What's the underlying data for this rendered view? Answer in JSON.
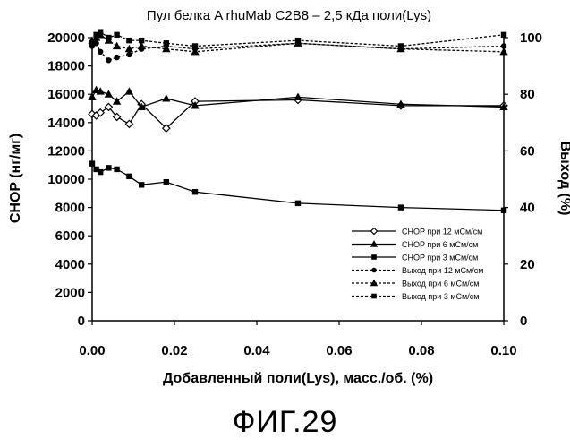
{
  "figure_label": "ФИГ.29",
  "chart_data": {
    "type": "line",
    "title": "Пул белка A rhuMab C2B8 – 2,5 кДа поли(Lys)",
    "xlabel": "Добавленный поли(Lys), масс./об. (%)",
    "ylabel": "CHOP (нг/мг)",
    "y2label": "Выход (%)",
    "xlim": [
      0,
      0.1
    ],
    "ylim": [
      0,
      20000
    ],
    "y2lim": [
      0,
      100
    ],
    "xticks": [
      "0.00",
      "0.02",
      "0.04",
      "0.06",
      "0.08",
      "0.10"
    ],
    "yticks": [
      "0",
      "2000",
      "4000",
      "6000",
      "8000",
      "10000",
      "12000",
      "14000",
      "16000",
      "18000",
      "20000"
    ],
    "y2ticks": [
      "0",
      "20",
      "40",
      "60",
      "80",
      "100"
    ],
    "grid": false,
    "legend_position": "center-right",
    "series": [
      {
        "name": "CHOP при 12 мСм/см",
        "axis": "left",
        "marker": "open-diamond",
        "dash": "solid",
        "x": [
          0,
          0.001,
          0.002,
          0.004,
          0.006,
          0.009,
          0.012,
          0.018,
          0.025,
          0.05,
          0.075,
          0.1
        ],
        "y": [
          14600,
          14500,
          14700,
          15100,
          14400,
          13900,
          15300,
          13600,
          15500,
          15600,
          15200,
          15200
        ]
      },
      {
        "name": "CHOP при 6 мСм/см",
        "axis": "left",
        "marker": "triangle",
        "dash": "solid",
        "x": [
          0,
          0.001,
          0.002,
          0.004,
          0.006,
          0.009,
          0.012,
          0.018,
          0.025,
          0.05,
          0.075,
          0.1
        ],
        "y": [
          15800,
          16300,
          16200,
          16000,
          15500,
          16200,
          15100,
          15700,
          15200,
          15800,
          15300,
          15100
        ]
      },
      {
        "name": "CHOP при 3 мСм/см",
        "axis": "left",
        "marker": "square",
        "dash": "solid",
        "x": [
          0,
          0.001,
          0.002,
          0.004,
          0.006,
          0.009,
          0.012,
          0.018,
          0.025,
          0.05,
          0.075,
          0.1
        ],
        "y": [
          11100,
          10700,
          10500,
          10800,
          10700,
          10200,
          9600,
          9800,
          9100,
          8300,
          8000,
          7800
        ]
      },
      {
        "name": "Выход при 12 мСм/см",
        "axis": "right",
        "marker": "circle",
        "dash": "dashed",
        "x": [
          0,
          0.001,
          0.002,
          0.004,
          0.006,
          0.009,
          0.012,
          0.018,
          0.025,
          0.05,
          0.075,
          0.1
        ],
        "y": [
          97,
          98,
          95,
          92,
          93,
          94,
          96,
          97,
          96,
          98,
          96,
          97
        ]
      },
      {
        "name": "Выход при 6 мСм/см",
        "axis": "right",
        "marker": "triangle",
        "dash": "dashed",
        "x": [
          0,
          0.001,
          0.002,
          0.004,
          0.006,
          0.009,
          0.012,
          0.018,
          0.025,
          0.05,
          0.075,
          0.1
        ],
        "y": [
          99,
          100,
          101,
          99,
          97,
          96,
          97,
          96,
          95,
          98,
          96,
          95
        ]
      },
      {
        "name": "Выход при 3 мСм/см",
        "axis": "right",
        "marker": "square",
        "dash": "dashed",
        "x": [
          0,
          0.001,
          0.002,
          0.004,
          0.006,
          0.009,
          0.012,
          0.018,
          0.025,
          0.05,
          0.075,
          0.1
        ],
        "y": [
          98,
          101,
          102,
          100,
          101,
          99,
          99,
          98,
          97,
          99,
          97,
          101
        ]
      }
    ]
  }
}
